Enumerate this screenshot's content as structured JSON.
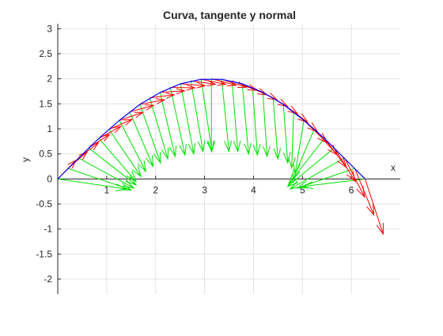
{
  "chart_data": {
    "type": "line",
    "title": "Curva, tangente y normal",
    "xlabel": "x",
    "ylabel": "y",
    "xlim": [
      0,
      7
    ],
    "ylim": [
      -2.3,
      3.1
    ],
    "xticks": [
      1,
      2,
      3,
      4,
      5,
      6
    ],
    "yticks": [
      3,
      2.5,
      2,
      1.5,
      1,
      0.5,
      0,
      -0.5,
      -1,
      -1.5,
      -2
    ],
    "grid": true,
    "axes_location": "origin",
    "curve": {
      "description_points": "y = 2*sin(x/2), t in [0, 2*pi]",
      "x": [
        0,
        0.42,
        0.84,
        1.26,
        1.68,
        2.1,
        2.51,
        2.93,
        3.35,
        3.77,
        4.19,
        4.61,
        5.03,
        5.45,
        5.86,
        6.28
      ],
      "y": [
        0,
        0.41,
        0.81,
        1.17,
        1.49,
        1.73,
        1.9,
        1.99,
        1.99,
        1.9,
        1.73,
        1.49,
        1.17,
        0.81,
        0.41,
        0
      ],
      "color": "#0000ff"
    },
    "tangents": {
      "color": "#ff0000",
      "base_x": [
        0,
        0.21,
        0.42,
        0.63,
        0.84,
        1.05,
        1.26,
        1.47,
        1.68,
        1.88,
        2.09,
        2.3,
        2.51,
        2.72,
        2.93,
        3.14,
        3.35,
        3.56,
        3.77,
        3.98,
        4.19,
        4.4,
        4.61,
        4.82,
        5.03,
        5.24,
        5.45,
        5.65,
        5.86,
        6.07,
        6.28
      ],
      "base_y": [
        0,
        0.21,
        0.42,
        0.62,
        0.81,
        0.99,
        1.17,
        1.34,
        1.49,
        1.62,
        1.73,
        1.83,
        1.9,
        1.96,
        1.99,
        2,
        1.99,
        1.96,
        1.9,
        1.83,
        1.73,
        1.62,
        1.49,
        1.34,
        1.17,
        0.99,
        0.81,
        0.62,
        0.42,
        0.21,
        0
      ],
      "dx": [
        0.37,
        0.39,
        0.41,
        0.43,
        0.45,
        0.47,
        0.48,
        0.49,
        0.5,
        0.5,
        0.5,
        0.5,
        0.5,
        0.5,
        0.5,
        0.5,
        0.5,
        0.5,
        0.5,
        0.5,
        0.5,
        0.5,
        0.5,
        0.49,
        0.48,
        0.47,
        0.45,
        0.43,
        0.41,
        0.39,
        0.37
      ],
      "dy": [
        0.37,
        0.33,
        0.3,
        0.27,
        0.24,
        0.2,
        0.16,
        0.13,
        0.09,
        0.06,
        0.03,
        -0.01,
        -0.04,
        -0.07,
        -0.1,
        -0.13,
        -0.16,
        -0.19,
        -0.22,
        -0.25,
        -0.28,
        -0.32,
        -0.36,
        -0.4,
        -0.45,
        -0.51,
        -0.58,
        -0.67,
        -0.78,
        -0.93,
        -1.1
      ]
    },
    "normals": {
      "color": "#00e000",
      "base_x": [
        0,
        0.21,
        0.42,
        0.63,
        0.84,
        1.05,
        1.26,
        1.47,
        1.68,
        1.88,
        2.09,
        2.3,
        2.51,
        2.72,
        2.93,
        3.14,
        3.35,
        3.56,
        3.77,
        3.98,
        4.19,
        4.4,
        4.61,
        4.82,
        5.03,
        5.24,
        5.45,
        5.65,
        5.86,
        6.07,
        6.28
      ],
      "base_y": [
        0,
        0.21,
        0.42,
        0.62,
        0.81,
        0.99,
        1.17,
        1.34,
        1.49,
        1.62,
        1.73,
        1.83,
        1.9,
        1.96,
        1.99,
        2,
        1.99,
        1.96,
        1.9,
        1.83,
        1.73,
        1.62,
        1.49,
        1.34,
        1.17,
        0.99,
        0.81,
        0.62,
        0.42,
        0.21,
        0
      ],
      "tip_x": [
        1.4,
        1.5,
        1.55,
        1.6,
        1.6,
        1.7,
        1.8,
        1.95,
        2.1,
        2.25,
        2.4,
        2.6,
        2.78,
        2.97,
        3.15,
        3.14,
        3.5,
        3.68,
        3.9,
        4.08,
        4.28,
        4.5,
        4.7,
        4.78,
        4.85,
        4.8,
        4.72,
        4.7,
        4.75,
        4.9,
        5.0
      ],
      "tip_y": [
        -0.2,
        -0.22,
        -0.18,
        -0.12,
        -0.05,
        0.05,
        0.15,
        0.25,
        0.32,
        0.4,
        0.45,
        0.48,
        0.5,
        0.55,
        0.55,
        0.55,
        0.55,
        0.55,
        0.5,
        0.48,
        0.45,
        0.4,
        0.32,
        0.22,
        0.1,
        -0.02,
        -0.1,
        -0.15,
        -0.2,
        -0.18,
        -0.15
      ]
    }
  }
}
